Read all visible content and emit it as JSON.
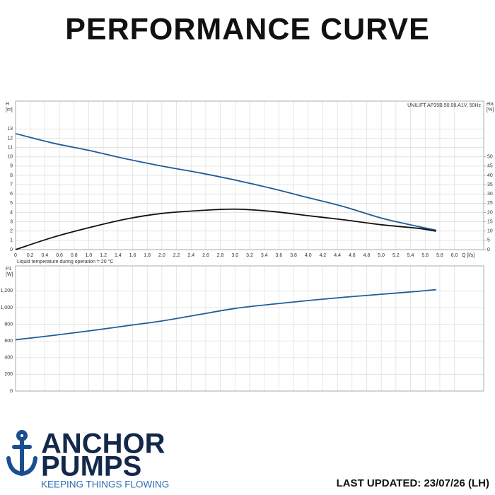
{
  "header": {
    "title": "PERFORMANCE CURVE"
  },
  "chart_data": [
    {
      "type": "line",
      "annotation": "UNILIFT AP35B.50.08.A1V, 50Hz",
      "xlabel": "Q [l/s]",
      "ylabel": "H",
      "yunit": "[m]",
      "y2label": "eta",
      "y2unit": "[%]",
      "xlim": [
        0,
        6.4
      ],
      "ylim": [
        0,
        16
      ],
      "y2lim": [
        0,
        80
      ],
      "xticks": [
        0,
        0.2,
        0.4,
        0.6,
        0.8,
        {
          "value": 1,
          "label": "1.0"
        },
        1.2,
        1.4,
        1.6,
        1.8,
        {
          "value": 2,
          "label": "2.0"
        },
        2.2,
        2.4,
        2.6,
        2.8,
        {
          "value": 3,
          "label": "3.0"
        },
        3.2,
        3.4,
        3.6,
        3.8,
        {
          "value": 4,
          "label": "4.0"
        },
        4.2,
        4.4,
        4.6,
        4.8,
        {
          "value": 5,
          "label": "5.0"
        },
        5.2,
        5.4,
        5.6,
        5.8,
        {
          "value": 6,
          "label": "6.0"
        }
      ],
      "yticks": [
        0,
        1,
        2,
        3,
        4,
        5,
        6,
        7,
        8,
        9,
        10,
        11,
        12,
        13
      ],
      "y2ticks": [
        0,
        5,
        10,
        15,
        20,
        25,
        30,
        35,
        40,
        45,
        50
      ],
      "grid": true,
      "x": [
        0,
        0.5,
        1,
        1.5,
        2,
        2.5,
        3,
        3.5,
        4,
        4.5,
        5,
        5.5,
        5.75
      ],
      "series": [
        {
          "color": "#1f5d99",
          "values": [
            12.5,
            11.5,
            10.7,
            9.8,
            9.0,
            8.3,
            7.5,
            6.6,
            5.6,
            4.6,
            3.4,
            2.5,
            2.1
          ]
        },
        {
          "color": "#111111",
          "axis": "y2",
          "values": [
            0,
            6.5,
            11.8,
            16.4,
            19.5,
            21,
            21.8,
            20.6,
            18.3,
            16,
            13.4,
            11.5,
            9.9
          ]
        }
      ]
    },
    {
      "type": "line",
      "subtitle": "Liquid temperature during operation = 20 °C",
      "ylabel": "P1",
      "yunit": "[W]",
      "xlim": [
        0,
        6.4
      ],
      "ylim": [
        0,
        1500
      ],
      "yticks": [
        0,
        200,
        400,
        600,
        800,
        {
          "value": 1000,
          "label": "1,000"
        },
        {
          "value": 1200,
          "label": "1,200"
        }
      ],
      "grid": true,
      "x": [
        0,
        0.5,
        1,
        1.5,
        2,
        2.5,
        3,
        3.5,
        4,
        4.5,
        5,
        5.5,
        5.75
      ],
      "series": [
        {
          "color": "#1f5d99",
          "values": [
            615,
            665,
            720,
            780,
            840,
            915,
            990,
            1040,
            1085,
            1125,
            1160,
            1195,
            1215
          ]
        }
      ]
    }
  ],
  "logo": {
    "line1": "ANCHOR",
    "line2": "PUMPS",
    "tagline": "KEEPING THINGS FLOWING"
  },
  "footer": {
    "updated": "LAST UPDATED: 23/07/26 (LH)"
  }
}
